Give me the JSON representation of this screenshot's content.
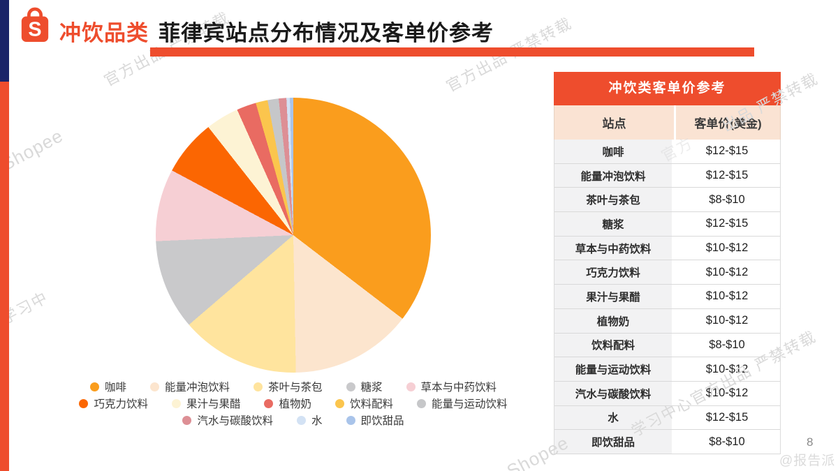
{
  "header": {
    "category": "冲饮品类",
    "title": "菲律宾站点分布情况及客单价参考"
  },
  "chart_data": {
    "type": "pie",
    "title": "菲律宾站点冲饮品类分布",
    "start_angle_deg": 0,
    "direction": "clockwise",
    "legend_position": "bottom",
    "legend_rows": [
      5,
      5,
      3
    ],
    "series": [
      {
        "label": "咖啡",
        "value": 35.4,
        "color": "#FA9D1D"
      },
      {
        "label": "能量冲泡饮料",
        "value": 14.3,
        "color": "#FCE5CE"
      },
      {
        "label": "茶叶与茶包",
        "value": 14.0,
        "color": "#FFE49E"
      },
      {
        "label": "糖浆",
        "value": 10.6,
        "color": "#C9C9CB"
      },
      {
        "label": "草本与中药饮料",
        "value": 8.5,
        "color": "#F6CFD4"
      },
      {
        "label": "巧克力饮料",
        "value": 6.6,
        "color": "#FB6602"
      },
      {
        "label": "果汁与果醋",
        "value": 3.9,
        "color": "#FDF3D4"
      },
      {
        "label": "植物奶",
        "value": 2.3,
        "color": "#E96B62"
      },
      {
        "label": "饮料配料",
        "value": 1.4,
        "color": "#FBC54D"
      },
      {
        "label": "能量与运动饮料",
        "value": 1.3,
        "color": "#C6C7C9"
      },
      {
        "label": "汽水与碳酸饮料",
        "value": 0.9,
        "color": "#DD8F95"
      },
      {
        "label": "水",
        "value": 0.4,
        "color": "#D3E2F4"
      },
      {
        "label": "即饮甜品",
        "value": 0.4,
        "color": "#A9C4EA"
      }
    ]
  },
  "table": {
    "title": "冲饮类客单价参考",
    "columns": [
      "站点",
      "客单价(美金)"
    ],
    "rows": [
      [
        "咖啡",
        "$12-$15"
      ],
      [
        "能量冲泡饮料",
        "$12-$15"
      ],
      [
        "茶叶与茶包",
        "$8-$10"
      ],
      [
        "糖浆",
        "$12-$15"
      ],
      [
        "草本与中药饮料",
        "$10-$12"
      ],
      [
        "巧克力饮料",
        "$10-$12"
      ],
      [
        "果汁与果醋",
        "$10-$12"
      ],
      [
        "植物奶",
        "$10-$12"
      ],
      [
        "饮料配料",
        "$8-$10"
      ],
      [
        "能量与运动饮料",
        "$10-$12"
      ],
      [
        "汽水与碳酸饮料",
        "$10-$12"
      ],
      [
        "水",
        "$12-$15"
      ],
      [
        "即饮甜品",
        "$8-$10"
      ]
    ]
  },
  "watermarks": [
    "官方出品 严禁转载",
    "官方出品 严禁转载",
    "出品 严禁转载",
    "Shopee",
    "家学习中",
    "学习中心官方出品 严禁转载",
    "官方",
    "Shopee"
  ],
  "footer": {
    "page_number": "8",
    "credit": "@报告派"
  },
  "colors": {
    "brand": "#EE4D2D",
    "navy": "#1A2368"
  }
}
